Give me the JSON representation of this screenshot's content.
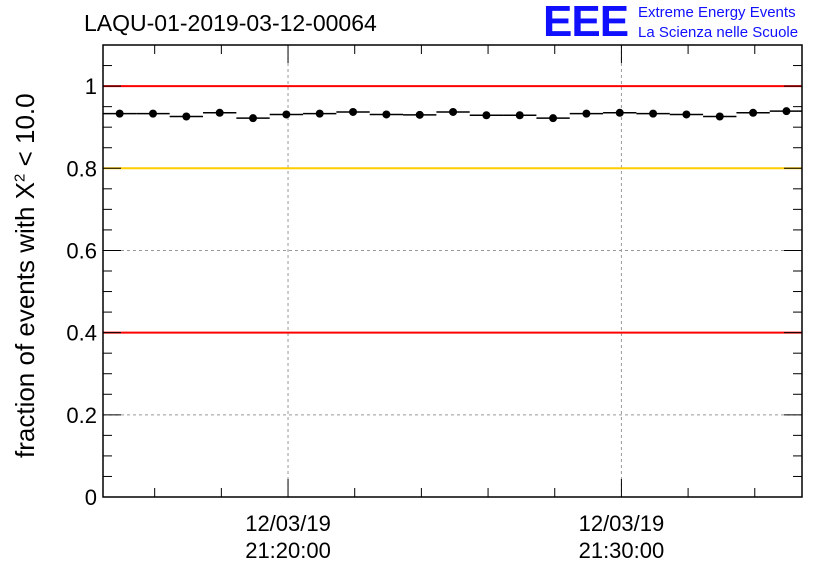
{
  "header": {
    "title": "LAQU-01-2019-03-12-00064",
    "logo": {
      "mark": "EEE",
      "line1": "Extreme Energy Events",
      "line2": "La Scienza nelle Scuole",
      "color": "#1010ff"
    }
  },
  "chart_data": {
    "type": "scatter",
    "title": "LAQU-01-2019-03-12-00064",
    "ylabel_prefix": "fraction of events with ",
    "ylabel_symbol": "X",
    "ylabel_sup": "2",
    "ylabel_suffix": " < 10.0",
    "ylim": [
      0,
      1.1
    ],
    "y_ticks": [
      0,
      0.2,
      0.4,
      0.6,
      0.8,
      1
    ],
    "y_tick_labels": [
      "0",
      "0.2",
      "0.4",
      "0.6",
      "0.8",
      "1"
    ],
    "x_range": [
      "2019-03-12 21:14:27",
      "2019-03-12 21:35:25"
    ],
    "x_tick_labels": [
      {
        "date": "12/03/19",
        "time": "21:20:00",
        "x": "2019-03-12 21:20:00"
      },
      {
        "date": "12/03/19",
        "time": "21:30:00",
        "x": "2019-03-12 21:30:00"
      }
    ],
    "grid": true,
    "reference_lines": [
      {
        "y": 1.0,
        "color": "#ff0000"
      },
      {
        "y": 0.8,
        "color": "#ffcc00"
      },
      {
        "y": 0.4,
        "color": "#ff0000"
      }
    ],
    "points": [
      {
        "x": "2019-03-12 21:14:57",
        "y": 0.933
      },
      {
        "x": "2019-03-12 21:15:57",
        "y": 0.933
      },
      {
        "x": "2019-03-12 21:16:57",
        "y": 0.926
      },
      {
        "x": "2019-03-12 21:17:57",
        "y": 0.935
      },
      {
        "x": "2019-03-12 21:18:57",
        "y": 0.922
      },
      {
        "x": "2019-03-12 21:19:57",
        "y": 0.931
      },
      {
        "x": "2019-03-12 21:20:57",
        "y": 0.933
      },
      {
        "x": "2019-03-12 21:21:57",
        "y": 0.937
      },
      {
        "x": "2019-03-12 21:22:57",
        "y": 0.931
      },
      {
        "x": "2019-03-12 21:23:57",
        "y": 0.93
      },
      {
        "x": "2019-03-12 21:24:57",
        "y": 0.937
      },
      {
        "x": "2019-03-12 21:25:57",
        "y": 0.929
      },
      {
        "x": "2019-03-12 21:26:57",
        "y": 0.929
      },
      {
        "x": "2019-03-12 21:27:57",
        "y": 0.922
      },
      {
        "x": "2019-03-12 21:28:57",
        "y": 0.933
      },
      {
        "x": "2019-03-12 21:29:57",
        "y": 0.935
      },
      {
        "x": "2019-03-12 21:30:57",
        "y": 0.933
      },
      {
        "x": "2019-03-12 21:31:57",
        "y": 0.931
      },
      {
        "x": "2019-03-12 21:32:57",
        "y": 0.926
      },
      {
        "x": "2019-03-12 21:33:57",
        "y": 0.935
      },
      {
        "x": "2019-03-12 21:34:57",
        "y": 0.939
      }
    ],
    "bin_width_seconds": 60,
    "colors": {
      "axis": "#000000",
      "grid": "#999999",
      "marker": "#000000"
    }
  }
}
